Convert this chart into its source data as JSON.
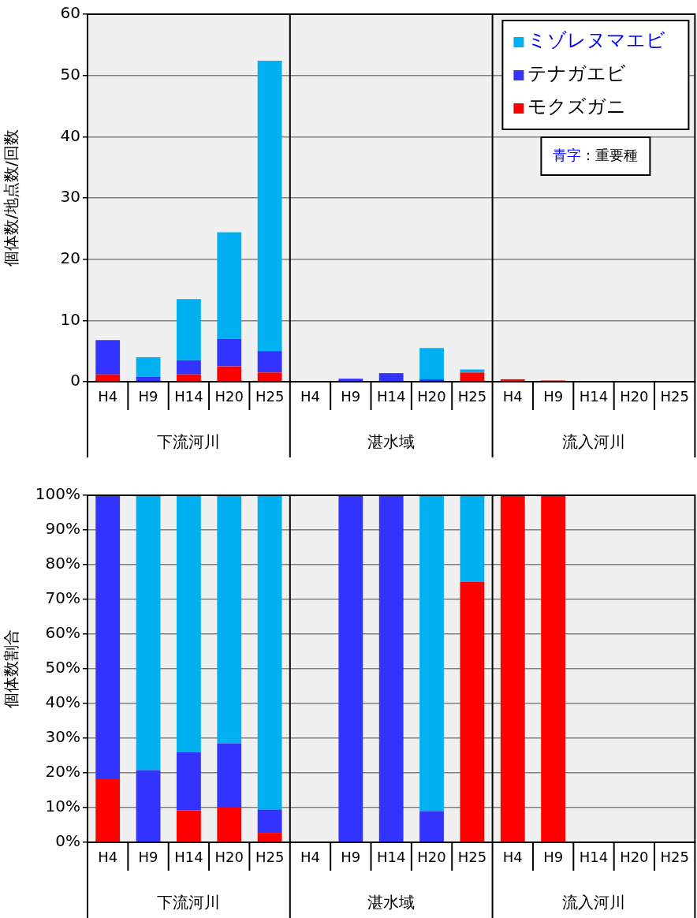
{
  "chart_data": [
    {
      "type": "bar",
      "stacked": true,
      "ylabel": "個体数/地点数/回数",
      "categories": [
        "H4",
        "H9",
        "H14",
        "H20",
        "H25",
        "H4",
        "H9",
        "H14",
        "H20",
        "H25",
        "H4",
        "H9",
        "H14",
        "H20",
        "H25"
      ],
      "series": [
        {
          "name": "モクズガニ",
          "color": "#ff0000",
          "values": [
            1.2,
            0,
            1.2,
            2.5,
            1.5,
            0,
            0,
            0,
            0,
            1.5,
            0.4,
            0.2,
            0,
            0,
            0
          ]
        },
        {
          "name": "テナガエビ",
          "color": "#3333ff",
          "values": [
            5.6,
            0.8,
            2.3,
            4.5,
            3.5,
            0,
            0.5,
            1.4,
            0.4,
            0,
            0,
            0,
            0,
            0,
            0
          ]
        },
        {
          "name": "ミゾレヌマエビ",
          "color": "#00b0f0",
          "values": [
            0,
            3.2,
            10.0,
            17.4,
            47.4,
            0,
            0,
            0,
            5.1,
            0.5,
            0,
            0,
            0,
            0,
            0
          ]
        }
      ],
      "ylim": [
        0,
        60
      ],
      "yticks": [
        0,
        10,
        20,
        30,
        40,
        50,
        60
      ],
      "grid": "y",
      "legend": "top right",
      "annotations": [
        "青字：重要種",
        "下流河川",
        "湛水域",
        "流入河川"
      ]
    },
    {
      "type": "bar",
      "stacked": true,
      "ylabel": "個体数割合",
      "categories": [
        "H4",
        "H9",
        "H14",
        "H20",
        "H25",
        "H4",
        "H9",
        "H14",
        "H20",
        "H25",
        "H4",
        "H9",
        "H14",
        "H20",
        "H25"
      ],
      "series": [
        {
          "color": "#ff0000",
          "values": [
            18.4,
            0,
            9.2,
            10.2,
            2.7,
            0,
            0,
            0,
            0,
            75,
            100,
            100,
            0,
            0,
            0
          ]
        },
        {
          "color": "#3333ff",
          "values": [
            81.6,
            20.8,
            16.7,
            18.3,
            6.7,
            0,
            100,
            100,
            9,
            0,
            0,
            0,
            0,
            0,
            0
          ]
        },
        {
          "color": "#00b0f0",
          "values": [
            0,
            79.2,
            74.1,
            71.5,
            90.6,
            0,
            0,
            0,
            91,
            25,
            0,
            0,
            0,
            0,
            0
          ]
        }
      ],
      "ylim": [
        0,
        100
      ],
      "yticks": [
        {
          "value": 0,
          "label": "0%"
        },
        {
          "value": 10,
          "label": "10%"
        },
        {
          "value": 20,
          "label": "20%"
        },
        {
          "value": 30,
          "label": "30%"
        },
        {
          "value": 40,
          "label": "40%"
        },
        {
          "value": 50,
          "label": "50%"
        },
        {
          "value": 60,
          "label": "60%"
        },
        {
          "value": 70,
          "label": "70%"
        },
        {
          "value": 80,
          "label": "80%"
        },
        {
          "value": 90,
          "label": "90%"
        },
        {
          "value": 100,
          "label": "100%"
        }
      ],
      "grid": "y",
      "legend": false,
      "annotations": [
        "下流河川",
        "湛水域",
        "流入河川"
      ]
    }
  ]
}
